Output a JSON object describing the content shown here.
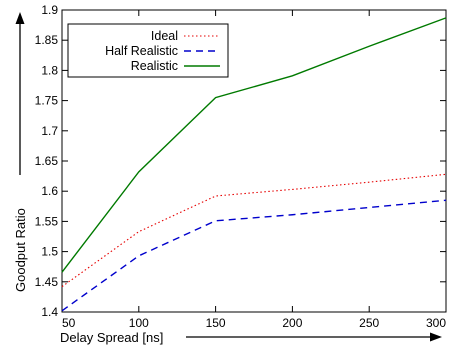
{
  "chart_data": {
    "type": "line",
    "title": "",
    "xlabel": "Delay Spread [ns]",
    "ylabel": "Goodput Ratio",
    "xlim": [
      50,
      300
    ],
    "ylim": [
      1.4,
      1.9
    ],
    "xticks": [
      "50",
      "100",
      "150",
      "200",
      "250",
      "300"
    ],
    "yticks": [
      "1.4",
      "1.45",
      "1.5",
      "1.55",
      "1.6",
      "1.65",
      "1.7",
      "1.75",
      "1.8",
      "1.85",
      "1.9"
    ],
    "x": [
      50,
      100,
      150,
      200,
      250,
      300
    ],
    "grid": false,
    "legend_position": "top-left",
    "series": [
      {
        "name": "Ideal",
        "color": "#e60000",
        "dash": "dotted",
        "values": [
          1.442,
          1.533,
          1.592,
          1.603,
          1.615,
          1.628
        ]
      },
      {
        "name": "Half Realistic",
        "color": "#0000cc",
        "dash": "dashed",
        "values": [
          1.402,
          1.493,
          1.551,
          1.561,
          1.573,
          1.585
        ]
      },
      {
        "name": "Realistic",
        "color": "#007a00",
        "dash": "solid",
        "values": [
          1.466,
          1.632,
          1.755,
          1.791,
          1.84,
          1.887
        ]
      }
    ]
  }
}
